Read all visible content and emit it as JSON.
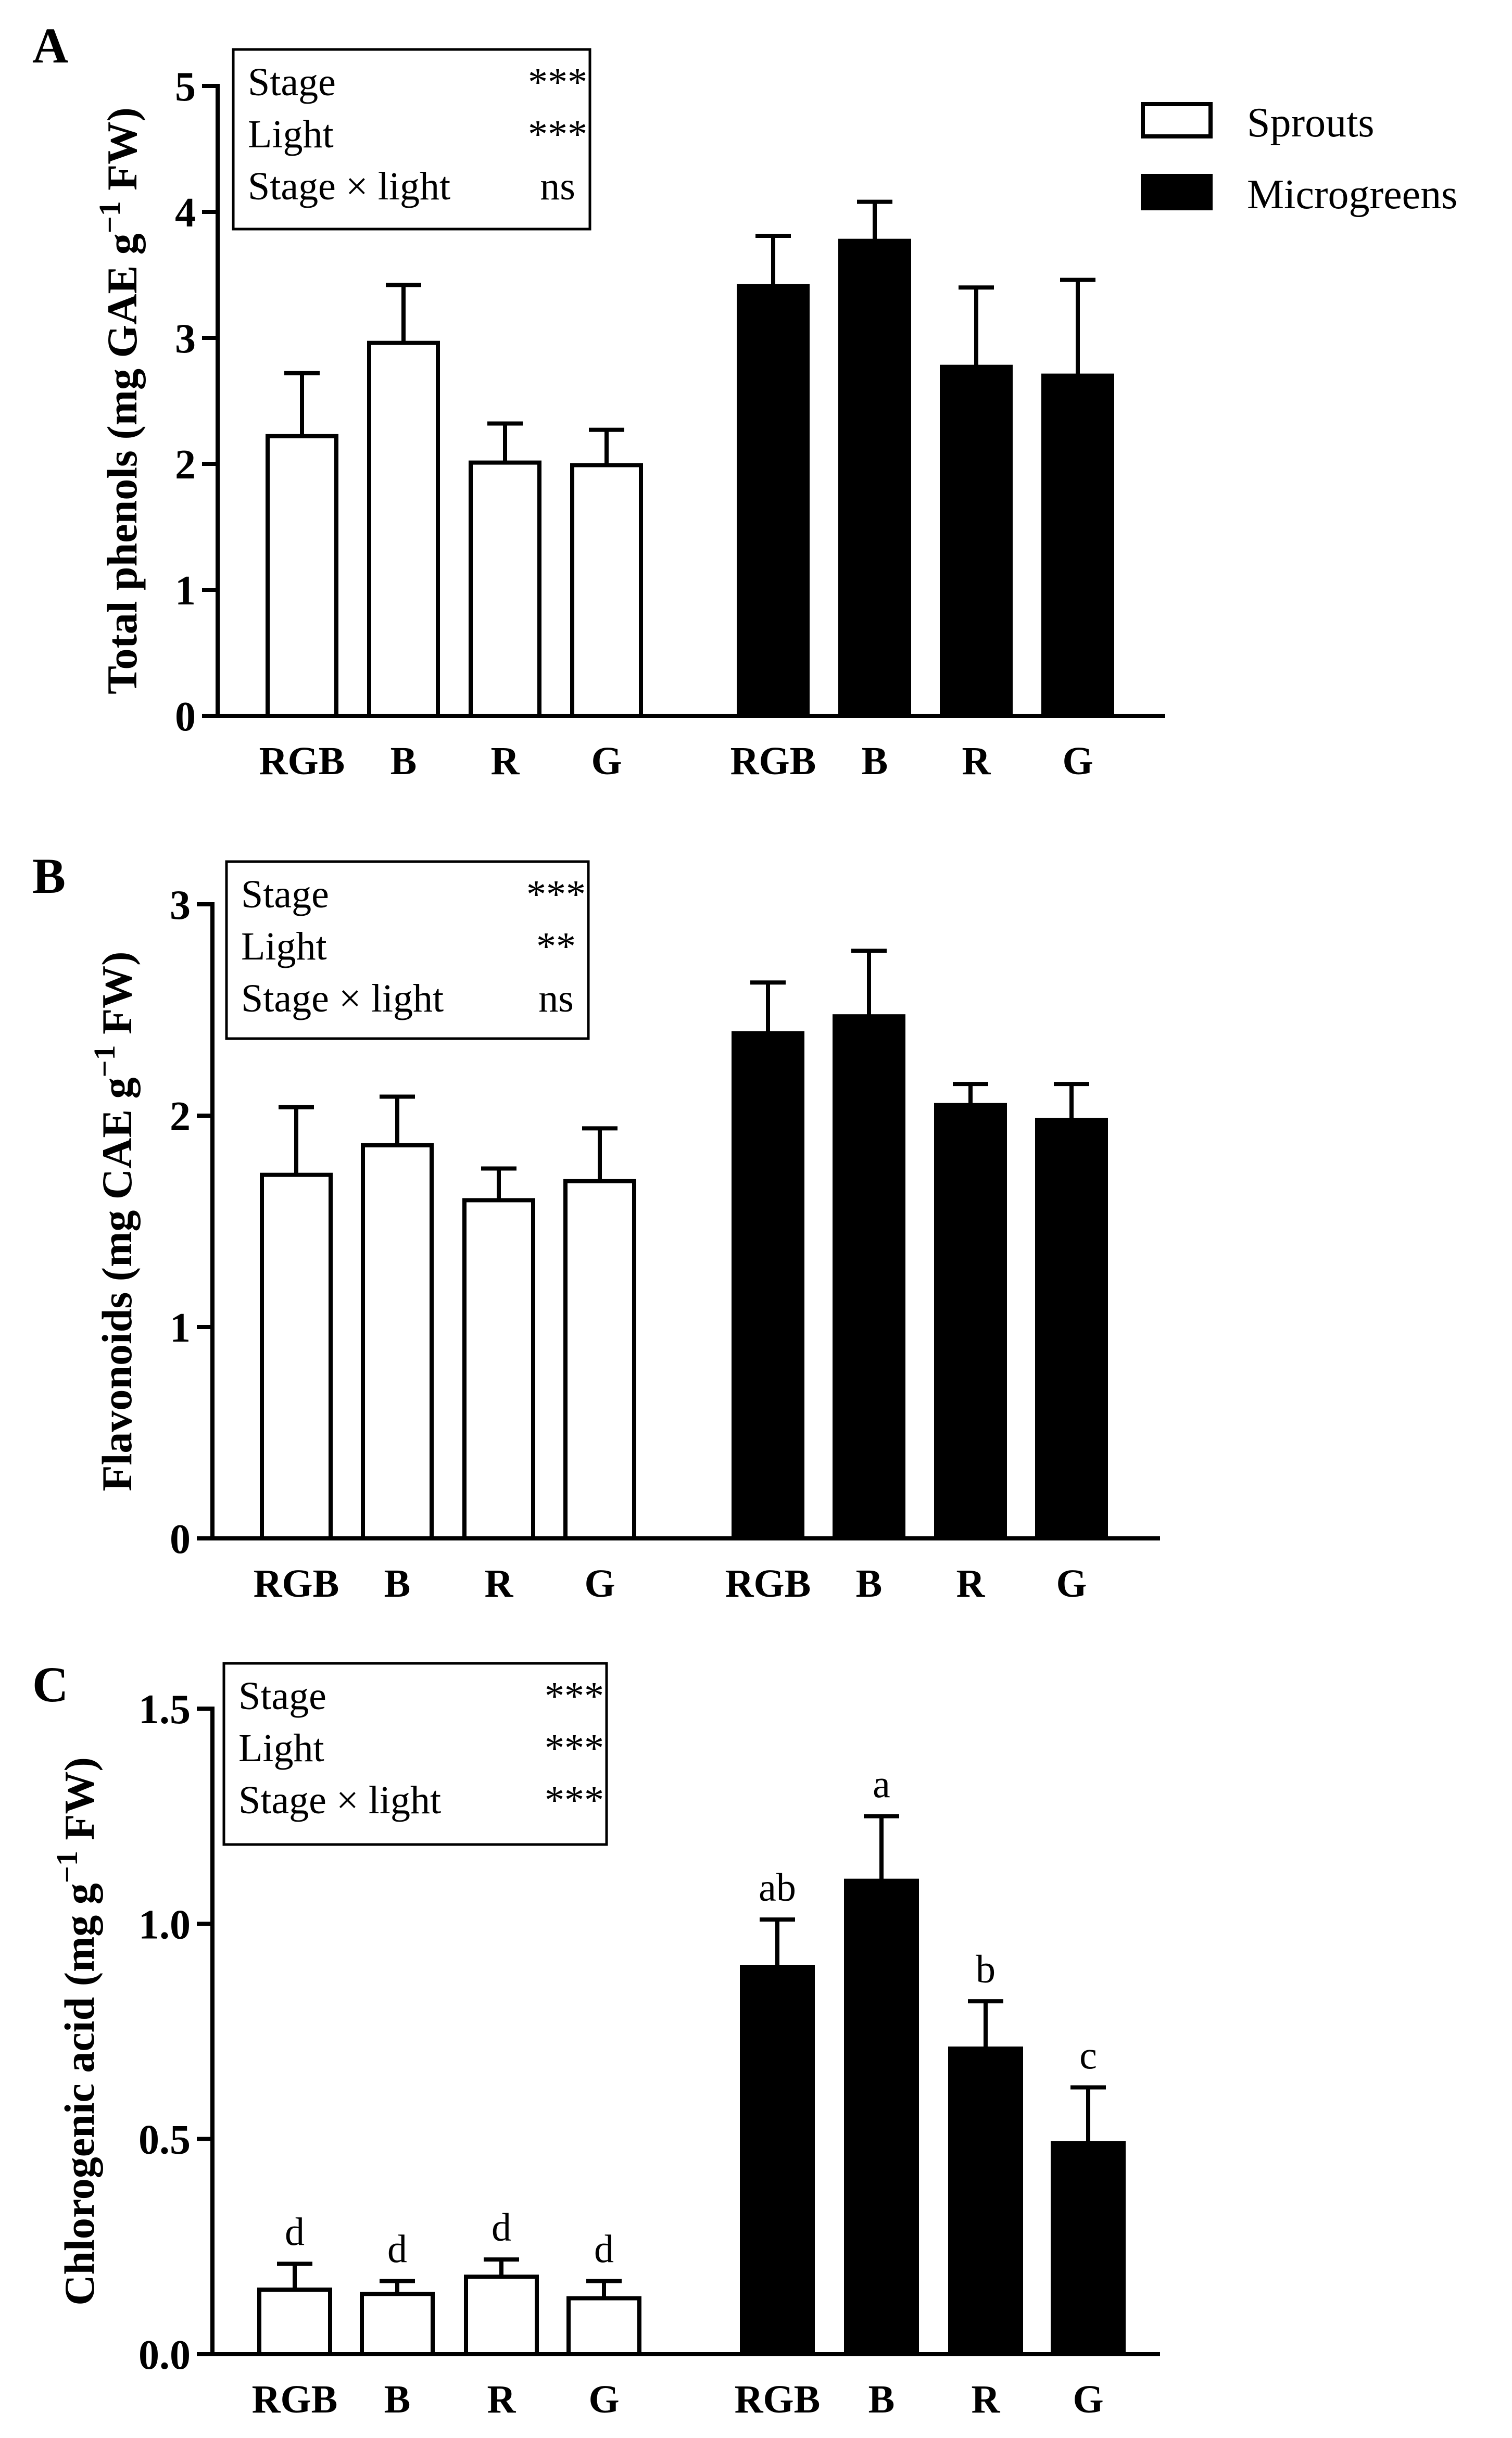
{
  "colors": {
    "sprouts_fill": "#ffffff",
    "microgreens_fill": "#000000",
    "stroke": "#000000"
  },
  "legend": {
    "sprouts": "Sprouts",
    "microgreens": "Microgreens"
  },
  "chart_data": [
    {
      "type": "bar",
      "panel": "A",
      "ylabel_main": "Total phenols (mg GAE g",
      "ylabel_sup": "−1",
      "ylabel_tail": " FW)",
      "ylim": [
        0,
        5
      ],
      "yticks": [
        "0",
        "1",
        "2",
        "3",
        "4",
        "5"
      ],
      "categories": [
        "RGB",
        "B",
        "R",
        "G"
      ],
      "series": [
        {
          "name": "Sprouts",
          "values": [
            2.22,
            2.96,
            2.01,
            1.99
          ],
          "errors": [
            0.5,
            0.46,
            0.31,
            0.28
          ]
        },
        {
          "name": "Microgreens",
          "values": [
            3.41,
            3.77,
            2.77,
            2.7
          ],
          "errors": [
            0.4,
            0.31,
            0.63,
            0.76
          ]
        }
      ],
      "stats": [
        {
          "label": "Stage",
          "value": "***"
        },
        {
          "label": "Light",
          "value": "***"
        },
        {
          "label": "Stage × light",
          "value": "ns"
        }
      ],
      "sig_letters": null
    },
    {
      "type": "bar",
      "panel": "B",
      "ylabel_main": "Flavonoids (mg CAE g",
      "ylabel_sup": "−1",
      "ylabel_tail": " FW)",
      "ylim": [
        0,
        3
      ],
      "yticks": [
        "0",
        "1",
        "2",
        "3"
      ],
      "categories": [
        "RGB",
        "B",
        "R",
        "G"
      ],
      "series": [
        {
          "name": "Sprouts",
          "values": [
            1.72,
            1.86,
            1.6,
            1.69
          ],
          "errors": [
            0.32,
            0.23,
            0.15,
            0.25
          ]
        },
        {
          "name": "Microgreens",
          "values": [
            2.39,
            2.47,
            2.05,
            1.98
          ],
          "errors": [
            0.24,
            0.31,
            0.1,
            0.17
          ]
        }
      ],
      "stats": [
        {
          "label": "Stage",
          "value": "***"
        },
        {
          "label": "Light",
          "value": "**"
        },
        {
          "label": "Stage × light",
          "value": "ns"
        }
      ],
      "sig_letters": null
    },
    {
      "type": "bar",
      "panel": "C",
      "ylabel_main": "Chlorogenic acid (mg g",
      "ylabel_sup": "−1",
      "ylabel_tail": " FW)",
      "ylim": [
        0,
        1.5
      ],
      "yticks": [
        "0.0",
        "0.5",
        "1.0",
        "1.5"
      ],
      "categories": [
        "RGB",
        "B",
        "R",
        "G"
      ],
      "series": [
        {
          "name": "Sprouts",
          "values": [
            0.15,
            0.14,
            0.18,
            0.13
          ],
          "errors": [
            0.06,
            0.03,
            0.04,
            0.04
          ]
        },
        {
          "name": "Microgreens",
          "values": [
            0.9,
            1.1,
            0.71,
            0.49
          ],
          "errors": [
            0.11,
            0.15,
            0.11,
            0.13
          ]
        }
      ],
      "stats": [
        {
          "label": "Stage",
          "value": "***"
        },
        {
          "label": "Light",
          "value": "***"
        },
        {
          "label": "Stage × light",
          "value": "***"
        }
      ],
      "sig_letters": [
        [
          "d",
          "d",
          "d",
          "d"
        ],
        [
          "ab",
          "a",
          "b",
          "c"
        ]
      ]
    }
  ]
}
